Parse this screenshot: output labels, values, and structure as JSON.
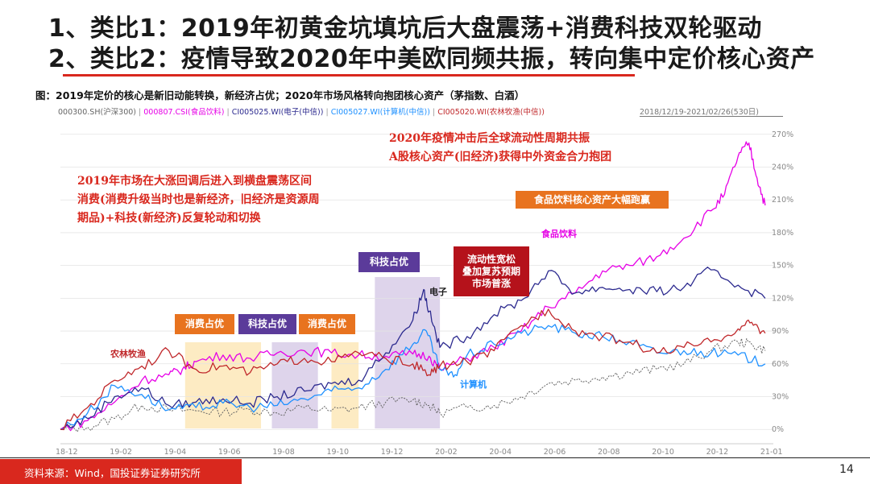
{
  "headline": {
    "line1": "1、类比1：2019年初黄金坑填坑后大盘震荡+消费科技双轮驱动",
    "line2": "2、类比2：疫情导致2020年中美欧同频共振，转向集中定价核心资产"
  },
  "caption": "图：2019年定价的核心是新旧动能转换，新经济占优；2020年市场风格转向抱团核心资产（茅指数、白酒）",
  "legend": {
    "items": [
      {
        "label": "000300.SH(沪深300)",
        "color": "#666666"
      },
      {
        "label": "000807.CSI(食品饮料)",
        "color": "#e600e6"
      },
      {
        "label": "CI005025.WI(电子(中信))",
        "color": "#2c2a8f"
      },
      {
        "label": "CI005027.WI(计算机(中信))",
        "color": "#1e90ff"
      },
      {
        "label": "CI005020.WI(农林牧渔(中信))",
        "color": "#c0282b"
      }
    ],
    "date_range": "2018/12/19-2021/02/26(530日)"
  },
  "annotations": {
    "left_text": [
      "2019年市场在大涨回调后进入到横盘震荡区间",
      "消费(消费升级当时也是新经济，旧经济是资源周",
      "期品)+科技(新经济)反复轮动和切换"
    ],
    "right_text": [
      "2020年疫情冲击后全球流动性周期共振",
      "A股核心资产(旧经济)获得中外资金合力抱团"
    ],
    "box_food_lead": "食品饮料核心资产大幅跑赢",
    "box_liquidity": [
      "流动性宽松",
      "叠加复苏预期",
      "市场普涨"
    ],
    "box_consumer_1": "消费占优",
    "box_tech_1": "科技占优",
    "box_consumer_2": "消费占优",
    "box_tech_2": "科技占优",
    "label_food": "食品饮料",
    "label_electronics": "电子",
    "label_computer": "计算机",
    "label_agri": "农林牧渔"
  },
  "colors": {
    "accent_red": "#d9281e",
    "consumer_box": "#e8731f",
    "tech_box": "#5b3b9a",
    "liquidity_box": "#b5121b",
    "consumer_shade": "#fde8b8",
    "tech_shade": "#d8cce8"
  },
  "chart_data": {
    "type": "line",
    "x_ticks": [
      "18-12",
      "19-02",
      "19-04",
      "19-06",
      "19-08",
      "19-10",
      "19-12",
      "20-02",
      "20-04",
      "20-06",
      "20-08",
      "20-10",
      "20-12",
      "21-01"
    ],
    "y_ticks": [
      "0%",
      "30%",
      "60%",
      "90%",
      "120%",
      "150%",
      "180%",
      "210%",
      "240%",
      "270%"
    ],
    "ylim": [
      -5,
      275
    ],
    "xlim": [
      0,
      26.3
    ],
    "shaded_periods": [
      {
        "label": "消费占优",
        "x": [
          4.6,
          7.4
        ],
        "kind": "consumer"
      },
      {
        "label": "科技占优",
        "x": [
          7.8,
          9.5
        ],
        "kind": "tech"
      },
      {
        "label": "消费占优",
        "x": [
          10.0,
          11.0
        ],
        "kind": "consumer"
      },
      {
        "label": "科技占优",
        "x": [
          11.6,
          14.0
        ],
        "kind": "tech"
      }
    ],
    "series": [
      {
        "name": "000300.SH(沪深300)",
        "color": "#666666",
        "dash": true,
        "points": [
          [
            0,
            0
          ],
          [
            1,
            2
          ],
          [
            2,
            10
          ],
          [
            3,
            22
          ],
          [
            4,
            18
          ],
          [
            5,
            17
          ],
          [
            6,
            16
          ],
          [
            7,
            18
          ],
          [
            8,
            15
          ],
          [
            9,
            20
          ],
          [
            10,
            17
          ],
          [
            11,
            20
          ],
          [
            12,
            25
          ],
          [
            13,
            27
          ],
          [
            13.6,
            22
          ],
          [
            14,
            15
          ],
          [
            15,
            20
          ],
          [
            16,
            22
          ],
          [
            17,
            30
          ],
          [
            18,
            42
          ],
          [
            19,
            45
          ],
          [
            20,
            48
          ],
          [
            21,
            52
          ],
          [
            22,
            55
          ],
          [
            23,
            60
          ],
          [
            24,
            72
          ],
          [
            25,
            80
          ],
          [
            25.5,
            78
          ],
          [
            26,
            72
          ]
        ]
      },
      {
        "name": "000807.CSI(食品饮料)",
        "color": "#e600e6",
        "dash": false,
        "points": [
          [
            0,
            0
          ],
          [
            1,
            8
          ],
          [
            2,
            25
          ],
          [
            3,
            45
          ],
          [
            4,
            50
          ],
          [
            4.5,
            55
          ],
          [
            5,
            62
          ],
          [
            6,
            68
          ],
          [
            7,
            65
          ],
          [
            8,
            70
          ],
          [
            9,
            72
          ],
          [
            10,
            70
          ],
          [
            11,
            68
          ],
          [
            12,
            67
          ],
          [
            13,
            69
          ],
          [
            13.6,
            67
          ],
          [
            14,
            55
          ],
          [
            15,
            65
          ],
          [
            16,
            75
          ],
          [
            17,
            90
          ],
          [
            18,
            112
          ],
          [
            19,
            125
          ],
          [
            20,
            145
          ],
          [
            21,
            150
          ],
          [
            22,
            158
          ],
          [
            23,
            175
          ],
          [
            24,
            200
          ],
          [
            24.5,
            215
          ],
          [
            25,
            250
          ],
          [
            25.4,
            262
          ],
          [
            25.7,
            230
          ],
          [
            26,
            205
          ]
        ]
      },
      {
        "name": "CI005025.WI(电子(中信))",
        "color": "#2c2a8f",
        "dash": false,
        "points": [
          [
            0,
            0
          ],
          [
            1,
            10
          ],
          [
            2,
            30
          ],
          [
            3,
            38
          ],
          [
            4,
            22
          ],
          [
            5,
            25
          ],
          [
            6,
            28
          ],
          [
            7,
            24
          ],
          [
            8,
            30
          ],
          [
            9,
            35
          ],
          [
            10,
            42
          ],
          [
            11,
            45
          ],
          [
            12,
            70
          ],
          [
            13,
            100
          ],
          [
            13.4,
            128
          ],
          [
            13.6,
            108
          ],
          [
            14,
            75
          ],
          [
            15,
            85
          ],
          [
            16,
            105
          ],
          [
            17,
            118
          ],
          [
            18,
            145
          ],
          [
            19,
            125
          ],
          [
            20,
            130
          ],
          [
            21,
            128
          ],
          [
            22,
            126
          ],
          [
            23,
            130
          ],
          [
            24,
            146
          ],
          [
            25,
            132
          ],
          [
            26,
            120
          ]
        ]
      },
      {
        "name": "CI005027.WI(计算机(中信))",
        "color": "#1e90ff",
        "dash": false,
        "points": [
          [
            0,
            0
          ],
          [
            1,
            15
          ],
          [
            2,
            40
          ],
          [
            3,
            32
          ],
          [
            4,
            18
          ],
          [
            5,
            20
          ],
          [
            6,
            24
          ],
          [
            7,
            20
          ],
          [
            8,
            22
          ],
          [
            9,
            28
          ],
          [
            10,
            35
          ],
          [
            11,
            38
          ],
          [
            12,
            55
          ],
          [
            13,
            78
          ],
          [
            13.5,
            90
          ],
          [
            14,
            55
          ],
          [
            14.5,
            48
          ],
          [
            15,
            68
          ],
          [
            16,
            78
          ],
          [
            17,
            88
          ],
          [
            18,
            95
          ],
          [
            19,
            88
          ],
          [
            20,
            85
          ],
          [
            21,
            80
          ],
          [
            22,
            70
          ],
          [
            23,
            72
          ],
          [
            24,
            70
          ],
          [
            25,
            68
          ],
          [
            26,
            60
          ]
        ]
      },
      {
        "name": "CI005020.WI(农林牧渔(中信))",
        "color": "#c0282b",
        "dash": false,
        "points": [
          [
            0,
            0
          ],
          [
            1,
            20
          ],
          [
            2,
            45
          ],
          [
            3,
            58
          ],
          [
            4,
            72
          ],
          [
            5,
            55
          ],
          [
            6,
            58
          ],
          [
            7,
            52
          ],
          [
            8,
            60
          ],
          [
            9,
            65
          ],
          [
            10,
            62
          ],
          [
            11,
            70
          ],
          [
            12,
            65
          ],
          [
            13,
            60
          ],
          [
            13.6,
            50
          ],
          [
            14,
            58
          ],
          [
            15,
            62
          ],
          [
            16,
            72
          ],
          [
            17,
            95
          ],
          [
            18,
            110
          ],
          [
            19,
            90
          ],
          [
            20,
            85
          ],
          [
            21,
            80
          ],
          [
            22,
            70
          ],
          [
            23,
            75
          ],
          [
            24,
            80
          ],
          [
            25,
            92
          ],
          [
            25.5,
            98
          ],
          [
            26,
            88
          ]
        ]
      }
    ]
  },
  "footer": {
    "source": "资料来源：Wind，国投证券证券研究所",
    "page": "14"
  }
}
